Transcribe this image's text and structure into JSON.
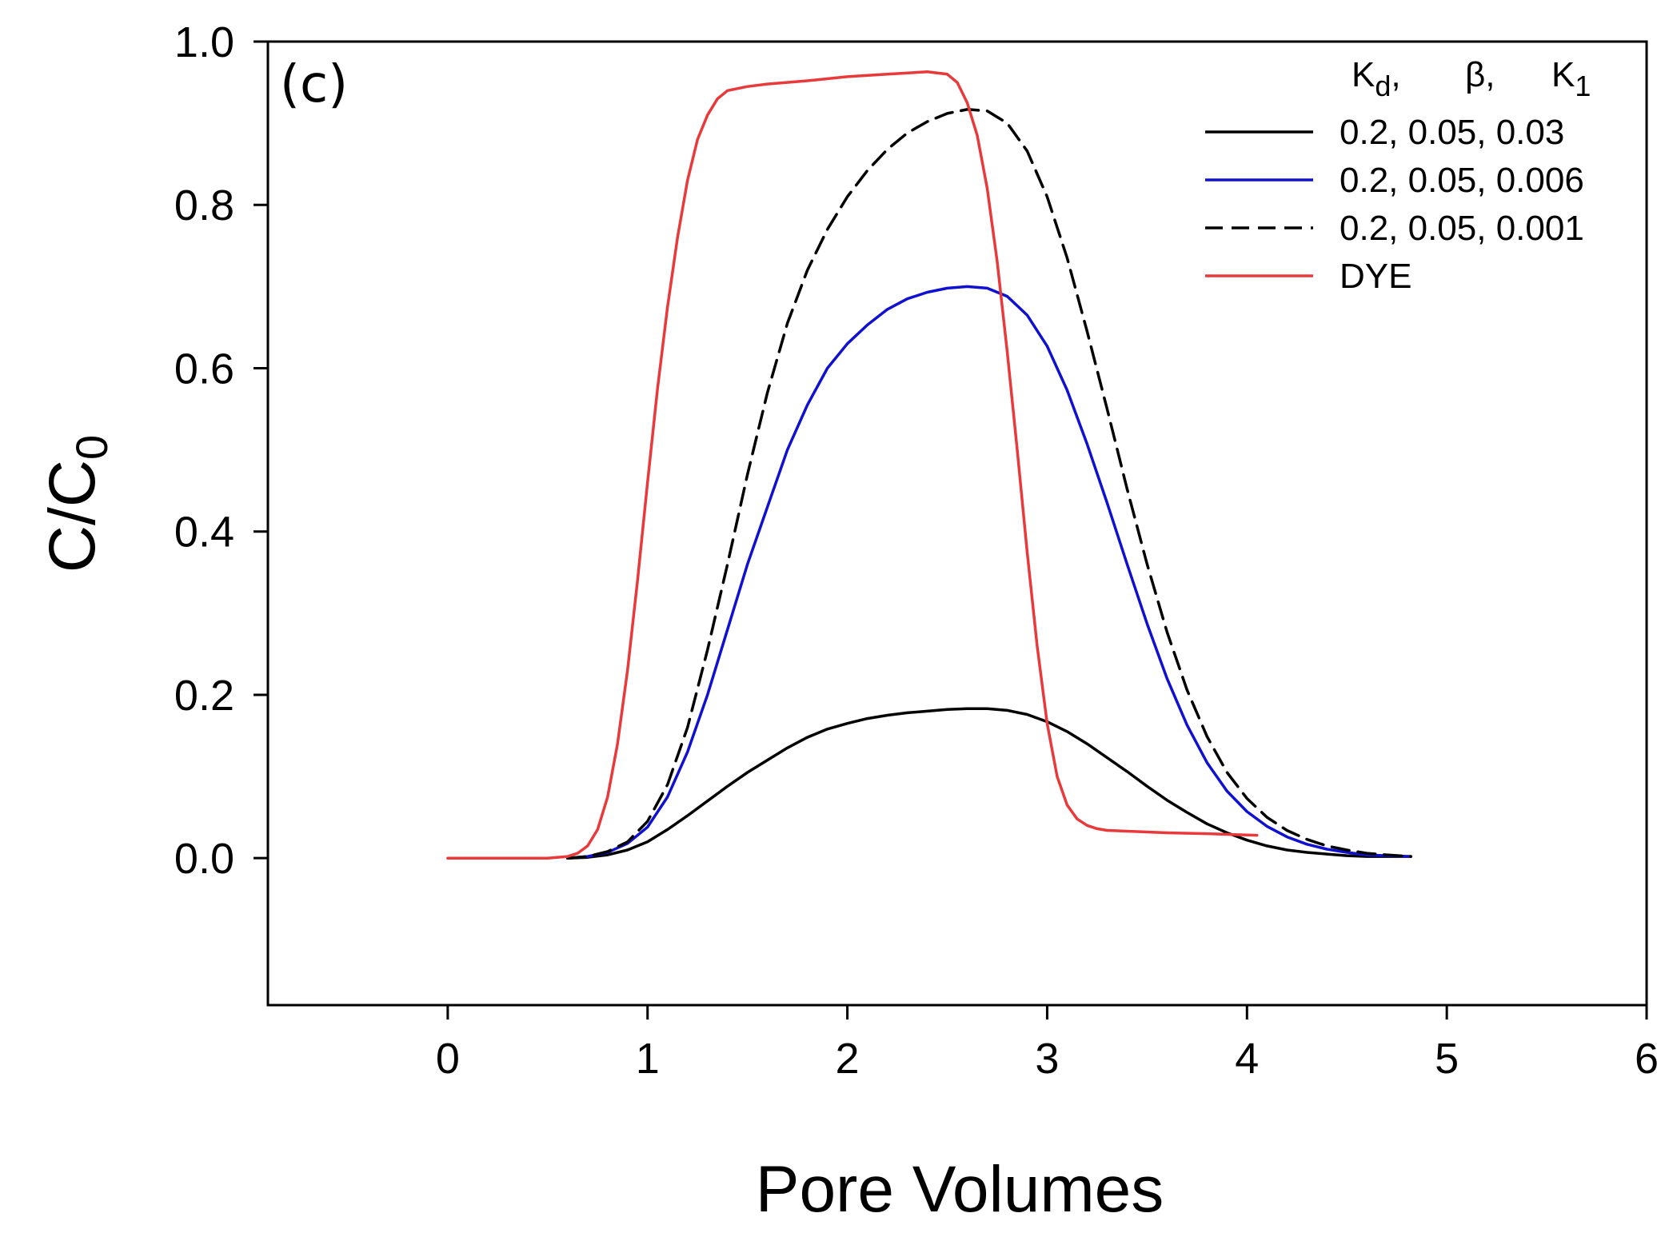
{
  "chart_data": {
    "type": "line",
    "panel_label": "(c)",
    "xlabel": "Pore Volumes",
    "ylabel_main": "C/C",
    "ylabel_sub": "0",
    "xlim": [
      -0.9,
      6
    ],
    "ylim": [
      -0.18,
      1.0
    ],
    "x_ticks": [
      0,
      1,
      2,
      3,
      4,
      5,
      6
    ],
    "x_tick_labels": [
      "0",
      "1",
      "2",
      "3",
      "4",
      "5",
      "6"
    ],
    "y_ticks": [
      0.0,
      0.2,
      0.4,
      0.6,
      0.8,
      1.0
    ],
    "y_tick_labels": [
      "0.0",
      "0.2",
      "0.4",
      "0.6",
      "0.8",
      "1.0"
    ],
    "grid": false,
    "legend": {
      "placement": "top-right",
      "header": {
        "kd_main": "K",
        "kd_sub": "d",
        "kd_comma": ",",
        "beta": "β,",
        "k1_main": "K",
        "k1_sub": "1"
      }
    },
    "series": [
      {
        "name": "0.2, 0.05, 0.03",
        "color": "#000000",
        "dash": "solid",
        "x": [
          0.6,
          0.7,
          0.8,
          0.9,
          1.0,
          1.1,
          1.2,
          1.3,
          1.4,
          1.5,
          1.6,
          1.7,
          1.8,
          1.9,
          2.0,
          2.1,
          2.2,
          2.3,
          2.4,
          2.5,
          2.6,
          2.7,
          2.8,
          2.9,
          3.0,
          3.1,
          3.2,
          3.3,
          3.4,
          3.5,
          3.6,
          3.7,
          3.8,
          3.9,
          4.0,
          4.1,
          4.2,
          4.3,
          4.4,
          4.5,
          4.6,
          4.7,
          4.82
        ],
        "values": [
          0.0,
          0.001,
          0.004,
          0.01,
          0.02,
          0.035,
          0.052,
          0.07,
          0.088,
          0.105,
          0.12,
          0.135,
          0.148,
          0.158,
          0.165,
          0.171,
          0.175,
          0.178,
          0.18,
          0.182,
          0.183,
          0.183,
          0.181,
          0.176,
          0.167,
          0.155,
          0.14,
          0.123,
          0.106,
          0.088,
          0.071,
          0.056,
          0.042,
          0.031,
          0.022,
          0.015,
          0.01,
          0.007,
          0.005,
          0.003,
          0.002,
          0.002,
          0.002
        ]
      },
      {
        "name": "0.2, 0.05, 0.006",
        "color": "#1010d0",
        "dash": "solid",
        "x": [
          0.6,
          0.7,
          0.8,
          0.9,
          1.0,
          1.1,
          1.2,
          1.3,
          1.4,
          1.5,
          1.6,
          1.7,
          1.8,
          1.9,
          2.0,
          2.1,
          2.2,
          2.3,
          2.4,
          2.5,
          2.6,
          2.7,
          2.8,
          2.9,
          3.0,
          3.1,
          3.2,
          3.3,
          3.4,
          3.5,
          3.6,
          3.7,
          3.8,
          3.9,
          4.0,
          4.1,
          4.2,
          4.3,
          4.4,
          4.5,
          4.6,
          4.7,
          4.82
        ],
        "values": [
          0.0,
          0.002,
          0.007,
          0.018,
          0.038,
          0.075,
          0.13,
          0.2,
          0.28,
          0.36,
          0.43,
          0.5,
          0.555,
          0.6,
          0.63,
          0.653,
          0.672,
          0.685,
          0.693,
          0.698,
          0.7,
          0.698,
          0.688,
          0.665,
          0.627,
          0.573,
          0.507,
          0.435,
          0.36,
          0.287,
          0.22,
          0.163,
          0.117,
          0.082,
          0.057,
          0.039,
          0.026,
          0.017,
          0.011,
          0.007,
          0.004,
          0.003,
          0.002
        ]
      },
      {
        "name": "0.2, 0.05, 0.001",
        "color": "#000000",
        "dash": "dashed",
        "x": [
          0.6,
          0.7,
          0.8,
          0.9,
          1.0,
          1.1,
          1.2,
          1.3,
          1.4,
          1.5,
          1.6,
          1.7,
          1.8,
          1.9,
          2.0,
          2.1,
          2.2,
          2.3,
          2.4,
          2.5,
          2.6,
          2.7,
          2.8,
          2.9,
          3.0,
          3.1,
          3.2,
          3.3,
          3.4,
          3.5,
          3.6,
          3.7,
          3.8,
          3.9,
          4.0,
          4.1,
          4.2,
          4.3,
          4.4,
          4.5,
          4.6,
          4.7,
          4.82
        ],
        "values": [
          0.0,
          0.002,
          0.008,
          0.02,
          0.045,
          0.09,
          0.16,
          0.255,
          0.36,
          0.47,
          0.57,
          0.655,
          0.72,
          0.77,
          0.81,
          0.842,
          0.868,
          0.888,
          0.902,
          0.912,
          0.917,
          0.915,
          0.9,
          0.866,
          0.81,
          0.735,
          0.645,
          0.55,
          0.452,
          0.36,
          0.277,
          0.206,
          0.149,
          0.105,
          0.073,
          0.05,
          0.034,
          0.023,
          0.015,
          0.01,
          0.006,
          0.004,
          0.002
        ]
      },
      {
        "name": "DYE",
        "color": "#e8393b",
        "dash": "solid",
        "x": [
          0.0,
          0.3,
          0.5,
          0.6,
          0.65,
          0.7,
          0.75,
          0.8,
          0.85,
          0.9,
          0.95,
          1.0,
          1.05,
          1.1,
          1.15,
          1.2,
          1.25,
          1.3,
          1.35,
          1.4,
          1.5,
          1.6,
          1.8,
          2.0,
          2.2,
          2.4,
          2.5,
          2.55,
          2.6,
          2.65,
          2.7,
          2.75,
          2.8,
          2.85,
          2.9,
          2.95,
          3.0,
          3.05,
          3.1,
          3.15,
          3.2,
          3.25,
          3.3,
          3.4,
          3.6,
          3.8,
          4.05
        ],
        "values": [
          0.0,
          0.0,
          0.0,
          0.002,
          0.006,
          0.015,
          0.035,
          0.075,
          0.14,
          0.23,
          0.34,
          0.46,
          0.575,
          0.675,
          0.76,
          0.83,
          0.88,
          0.91,
          0.93,
          0.94,
          0.945,
          0.948,
          0.952,
          0.957,
          0.96,
          0.963,
          0.96,
          0.95,
          0.925,
          0.885,
          0.82,
          0.73,
          0.62,
          0.5,
          0.375,
          0.26,
          0.165,
          0.1,
          0.065,
          0.048,
          0.04,
          0.036,
          0.034,
          0.033,
          0.031,
          0.03,
          0.028
        ]
      }
    ]
  }
}
